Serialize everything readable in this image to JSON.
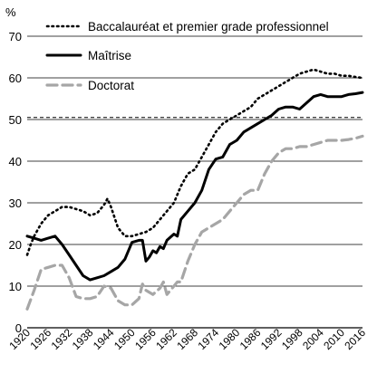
{
  "chart_data": {
    "type": "line",
    "ylabel": "%",
    "ylim": [
      0,
      70
    ],
    "yticks": [
      0,
      10,
      20,
      30,
      40,
      50,
      60,
      70
    ],
    "xlim": [
      1920,
      2016
    ],
    "xticks": [
      1920,
      1926,
      1932,
      1938,
      1944,
      1950,
      1956,
      1962,
      1968,
      1974,
      1980,
      1986,
      1992,
      1998,
      2004,
      2010,
      2016
    ],
    "grid": "horizontal",
    "legend_position": "top-left",
    "reference_line": {
      "y": 50.5,
      "style": "dashed"
    },
    "series": [
      {
        "name": "Baccalauréat et premier grade professionnel",
        "style": "dotted",
        "color": "#000000",
        "points": [
          [
            1920,
            17.5
          ],
          [
            1921,
            20
          ],
          [
            1922,
            22
          ],
          [
            1924,
            25
          ],
          [
            1926,
            27
          ],
          [
            1928,
            28
          ],
          [
            1930,
            29
          ],
          [
            1932,
            29
          ],
          [
            1934,
            28.5
          ],
          [
            1936,
            28
          ],
          [
            1938,
            27
          ],
          [
            1940,
            27.5
          ],
          [
            1942,
            29.5
          ],
          [
            1943,
            31
          ],
          [
            1944,
            29
          ],
          [
            1946,
            24
          ],
          [
            1948,
            22
          ],
          [
            1950,
            22
          ],
          [
            1952,
            22.5
          ],
          [
            1954,
            23
          ],
          [
            1956,
            24
          ],
          [
            1958,
            26
          ],
          [
            1960,
            28
          ],
          [
            1962,
            30
          ],
          [
            1964,
            34
          ],
          [
            1966,
            37
          ],
          [
            1968,
            38
          ],
          [
            1970,
            41
          ],
          [
            1972,
            44
          ],
          [
            1974,
            47
          ],
          [
            1976,
            49
          ],
          [
            1978,
            50
          ],
          [
            1980,
            51
          ],
          [
            1982,
            52
          ],
          [
            1984,
            53
          ],
          [
            1986,
            55
          ],
          [
            1988,
            56
          ],
          [
            1990,
            57
          ],
          [
            1992,
            58
          ],
          [
            1994,
            59
          ],
          [
            1996,
            60
          ],
          [
            1998,
            61
          ],
          [
            2000,
            61.5
          ],
          [
            2002,
            62
          ],
          [
            2004,
            61.5
          ],
          [
            2006,
            61
          ],
          [
            2008,
            61
          ],
          [
            2010,
            60.5
          ],
          [
            2012,
            60.5
          ],
          [
            2014,
            60.2
          ],
          [
            2016,
            60
          ]
        ]
      },
      {
        "name": "Maîtrise",
        "style": "solid",
        "color": "#000000",
        "points": [
          [
            1920,
            22
          ],
          [
            1922,
            21.5
          ],
          [
            1924,
            21
          ],
          [
            1926,
            21.5
          ],
          [
            1928,
            22
          ],
          [
            1930,
            20
          ],
          [
            1932,
            17.5
          ],
          [
            1934,
            15
          ],
          [
            1936,
            12.5
          ],
          [
            1938,
            11.5
          ],
          [
            1940,
            12
          ],
          [
            1942,
            12.5
          ],
          [
            1944,
            13.5
          ],
          [
            1946,
            14.5
          ],
          [
            1948,
            16.5
          ],
          [
            1950,
            20.5
          ],
          [
            1952,
            21
          ],
          [
            1953,
            21
          ],
          [
            1954,
            16
          ],
          [
            1955,
            17
          ],
          [
            1956,
            18.5
          ],
          [
            1957,
            18
          ],
          [
            1958,
            19.5
          ],
          [
            1959,
            19
          ],
          [
            1960,
            21
          ],
          [
            1962,
            22.5
          ],
          [
            1963,
            22
          ],
          [
            1964,
            26
          ],
          [
            1966,
            28
          ],
          [
            1968,
            30
          ],
          [
            1970,
            33
          ],
          [
            1972,
            38
          ],
          [
            1974,
            40.5
          ],
          [
            1976,
            41
          ],
          [
            1978,
            44
          ],
          [
            1980,
            45
          ],
          [
            1982,
            47
          ],
          [
            1984,
            48
          ],
          [
            1986,
            49
          ],
          [
            1988,
            50
          ],
          [
            1990,
            51
          ],
          [
            1992,
            52.5
          ],
          [
            1994,
            53
          ],
          [
            1996,
            53
          ],
          [
            1998,
            52.5
          ],
          [
            2000,
            54
          ],
          [
            2002,
            55.5
          ],
          [
            2004,
            56
          ],
          [
            2006,
            55.5
          ],
          [
            2008,
            55.5
          ],
          [
            2010,
            55.5
          ],
          [
            2012,
            56
          ],
          [
            2014,
            56.2
          ],
          [
            2016,
            56.5
          ]
        ]
      },
      {
        "name": "Doctorat",
        "style": "dashed",
        "color": "#a6a6a6",
        "points": [
          [
            1920,
            4.5
          ],
          [
            1922,
            9
          ],
          [
            1924,
            14
          ],
          [
            1926,
            14.5
          ],
          [
            1928,
            15
          ],
          [
            1930,
            15
          ],
          [
            1932,
            12
          ],
          [
            1934,
            7.5
          ],
          [
            1936,
            7
          ],
          [
            1938,
            7
          ],
          [
            1940,
            7.5
          ],
          [
            1942,
            10
          ],
          [
            1944,
            9.5
          ],
          [
            1946,
            6.5
          ],
          [
            1948,
            5.5
          ],
          [
            1950,
            5.5
          ],
          [
            1952,
            7
          ],
          [
            1953,
            10.5
          ],
          [
            1954,
            9
          ],
          [
            1956,
            8
          ],
          [
            1958,
            9.5
          ],
          [
            1959,
            11
          ],
          [
            1960,
            8
          ],
          [
            1962,
            10
          ],
          [
            1963,
            11
          ],
          [
            1964,
            11
          ],
          [
            1966,
            16
          ],
          [
            1968,
            20
          ],
          [
            1970,
            23
          ],
          [
            1972,
            24
          ],
          [
            1974,
            25
          ],
          [
            1976,
            26
          ],
          [
            1978,
            28
          ],
          [
            1980,
            30
          ],
          [
            1982,
            32
          ],
          [
            1984,
            33
          ],
          [
            1986,
            33
          ],
          [
            1988,
            37
          ],
          [
            1990,
            40
          ],
          [
            1992,
            42
          ],
          [
            1994,
            43
          ],
          [
            1996,
            43
          ],
          [
            1998,
            43.5
          ],
          [
            2000,
            43.5
          ],
          [
            2002,
            44
          ],
          [
            2004,
            44.5
          ],
          [
            2006,
            45
          ],
          [
            2008,
            45
          ],
          [
            2010,
            45
          ],
          [
            2012,
            45.2
          ],
          [
            2014,
            45.5
          ],
          [
            2016,
            46
          ]
        ]
      }
    ]
  }
}
